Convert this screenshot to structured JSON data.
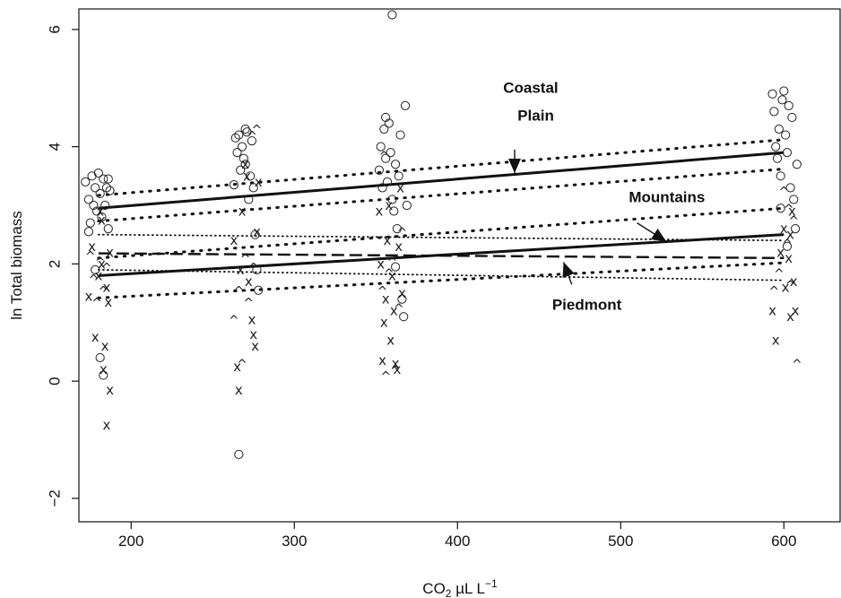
{
  "chart_data": {
    "type": "scatter",
    "xlabel": "CO2 µL L−1",
    "xlabel_main": "CO",
    "xlabel_sub": "2",
    "xlabel_unit": " µL L",
    "xlabel_sup": "−1",
    "ylabel": "ln Total biomass",
    "xlim": [
      168,
      635
    ],
    "ylim": [
      -2.4,
      6.35
    ],
    "x_ticks": [
      200,
      300,
      400,
      500,
      600
    ],
    "y_ticks": [
      -2,
      0,
      2,
      4,
      6
    ],
    "grid": false,
    "legend": "none",
    "series": [
      {
        "name": "Coastal Plain",
        "marker": "circle",
        "points": [
          [
            172,
            3.4
          ],
          [
            174,
            3.1
          ],
          [
            175,
            2.7
          ],
          [
            176,
            3.5
          ],
          [
            177,
            3.0
          ],
          [
            178,
            3.3
          ],
          [
            179,
            2.9
          ],
          [
            180,
            3.55
          ],
          [
            181,
            3.2
          ],
          [
            182,
            2.8
          ],
          [
            183,
            3.45
          ],
          [
            184,
            3.0
          ],
          [
            185,
            3.3
          ],
          [
            186,
            2.6
          ],
          [
            187,
            3.25
          ],
          [
            178,
            1.9
          ],
          [
            181,
            0.4
          ],
          [
            183,
            0.1
          ],
          [
            174,
            2.55
          ],
          [
            186,
            3.45
          ],
          [
            263,
            3.35
          ],
          [
            264,
            4.15
          ],
          [
            265,
            3.9
          ],
          [
            266,
            4.2
          ],
          [
            267,
            3.6
          ],
          [
            268,
            4.0
          ],
          [
            269,
            3.8
          ],
          [
            270,
            3.7
          ],
          [
            271,
            4.25
          ],
          [
            272,
            3.1
          ],
          [
            273,
            3.5
          ],
          [
            274,
            4.1
          ],
          [
            275,
            3.3
          ],
          [
            276,
            2.5
          ],
          [
            277,
            1.9
          ],
          [
            278,
            1.55
          ],
          [
            266,
            -1.25
          ],
          [
            270,
            4.3
          ],
          [
            352,
            3.6
          ],
          [
            353,
            4.0
          ],
          [
            354,
            3.3
          ],
          [
            355,
            4.3
          ],
          [
            356,
            3.8
          ],
          [
            357,
            3.4
          ],
          [
            358,
            4.4
          ],
          [
            359,
            3.9
          ],
          [
            360,
            3.1
          ],
          [
            361,
            2.9
          ],
          [
            362,
            3.7
          ],
          [
            363,
            2.6
          ],
          [
            364,
            3.5
          ],
          [
            365,
            4.2
          ],
          [
            366,
            1.4
          ],
          [
            367,
            1.1
          ],
          [
            368,
            4.7
          ],
          [
            369,
            3.0
          ],
          [
            360,
            6.25
          ],
          [
            356,
            4.5
          ],
          [
            362,
            1.95
          ],
          [
            593,
            4.9
          ],
          [
            594,
            4.6
          ],
          [
            595,
            4.0
          ],
          [
            596,
            3.8
          ],
          [
            597,
            4.3
          ],
          [
            598,
            3.5
          ],
          [
            599,
            4.8
          ],
          [
            600,
            4.95
          ],
          [
            601,
            4.2
          ],
          [
            602,
            3.9
          ],
          [
            603,
            4.7
          ],
          [
            604,
            3.3
          ],
          [
            605,
            4.5
          ],
          [
            606,
            3.1
          ],
          [
            607,
            2.6
          ],
          [
            608,
            3.7
          ],
          [
            602,
            2.3
          ],
          [
            598,
            2.95
          ]
        ]
      },
      {
        "name": "Mountains",
        "marker": "x",
        "points": [
          [
            174,
            1.45
          ],
          [
            176,
            2.3
          ],
          [
            178,
            0.75
          ],
          [
            180,
            1.8
          ],
          [
            181,
            2.9
          ],
          [
            182,
            2.75
          ],
          [
            183,
            0.2
          ],
          [
            184,
            0.6
          ],
          [
            185,
            1.6
          ],
          [
            186,
            1.35
          ],
          [
            187,
            -0.15
          ],
          [
            185,
            -0.75
          ],
          [
            182,
            2.0
          ],
          [
            187,
            2.2
          ],
          [
            263,
            2.4
          ],
          [
            265,
            0.25
          ],
          [
            266,
            -0.15
          ],
          [
            268,
            2.9
          ],
          [
            270,
            3.7
          ],
          [
            271,
            3.5
          ],
          [
            272,
            1.7
          ],
          [
            274,
            1.05
          ],
          [
            275,
            0.8
          ],
          [
            276,
            0.6
          ],
          [
            277,
            2.55
          ],
          [
            278,
            3.4
          ],
          [
            267,
            1.9
          ],
          [
            352,
            2.9
          ],
          [
            353,
            2.0
          ],
          [
            354,
            0.35
          ],
          [
            355,
            1.0
          ],
          [
            356,
            1.4
          ],
          [
            357,
            2.4
          ],
          [
            358,
            3.0
          ],
          [
            359,
            0.7
          ],
          [
            360,
            1.8
          ],
          [
            361,
            1.2
          ],
          [
            362,
            0.3
          ],
          [
            363,
            0.2
          ],
          [
            364,
            2.3
          ],
          [
            365,
            3.3
          ],
          [
            366,
            1.5
          ],
          [
            593,
            1.2
          ],
          [
            595,
            0.7
          ],
          [
            598,
            2.2
          ],
          [
            600,
            2.6
          ],
          [
            601,
            1.6
          ],
          [
            603,
            2.1
          ],
          [
            604,
            1.1
          ],
          [
            605,
            2.9
          ],
          [
            606,
            1.7
          ],
          [
            607,
            1.2
          ],
          [
            604,
            2.5
          ]
        ]
      },
      {
        "name": "Piedmont",
        "marker": "caret",
        "points": [
          [
            175,
            2.2
          ],
          [
            177,
            1.8
          ],
          [
            179,
            1.4
          ],
          [
            181,
            2.1
          ],
          [
            183,
            1.6
          ],
          [
            185,
            2.0
          ],
          [
            263,
            1.1
          ],
          [
            266,
            1.6
          ],
          [
            268,
            0.35
          ],
          [
            270,
            2.15
          ],
          [
            272,
            1.4
          ],
          [
            274,
            4.25
          ],
          [
            277,
            4.35
          ],
          [
            275,
            2.0
          ],
          [
            354,
            1.6
          ],
          [
            356,
            0.15
          ],
          [
            358,
            1.9
          ],
          [
            360,
            2.1
          ],
          [
            362,
            0.25
          ],
          [
            364,
            1.3
          ],
          [
            366,
            2.6
          ],
          [
            355,
            3.9
          ],
          [
            594,
            1.6
          ],
          [
            597,
            1.9
          ],
          [
            600,
            3.3
          ],
          [
            602,
            2.4
          ],
          [
            604,
            1.7
          ],
          [
            606,
            2.8
          ],
          [
            608,
            0.35
          ],
          [
            603,
            3.0
          ]
        ]
      }
    ],
    "fit_lines": [
      {
        "name": "Coastal Plain fit",
        "style": "solid",
        "x": [
          180,
          600
        ],
        "y": [
          2.95,
          3.9
        ]
      },
      {
        "name": "Coastal Plain band upper",
        "style": "dotted",
        "x": [
          180,
          600
        ],
        "y": [
          3.17,
          4.12
        ]
      },
      {
        "name": "Coastal Plain band lower",
        "style": "dotted",
        "x": [
          180,
          600
        ],
        "y": [
          2.73,
          3.62
        ]
      },
      {
        "name": "Piedmont fit",
        "style": "dashed",
        "x": [
          180,
          600
        ],
        "y": [
          2.18,
          2.1
        ]
      },
      {
        "name": "Piedmont band upper",
        "style": "dotted-fine",
        "x": [
          180,
          600
        ],
        "y": [
          2.5,
          2.4
        ]
      },
      {
        "name": "Piedmont band lower",
        "style": "dotted-fine",
        "x": [
          180,
          600
        ],
        "y": [
          1.9,
          1.72
        ]
      },
      {
        "name": "Mountains fit",
        "style": "solid",
        "x": [
          180,
          600
        ],
        "y": [
          1.8,
          2.5
        ]
      },
      {
        "name": "Mountains band upper",
        "style": "dotted",
        "x": [
          180,
          600
        ],
        "y": [
          2.1,
          2.95
        ]
      },
      {
        "name": "Mountains band lower",
        "style": "dotted",
        "x": [
          180,
          600
        ],
        "y": [
          1.42,
          2.02
        ]
      }
    ],
    "annotations": [
      {
        "name": "annotation-coastal",
        "lines": [
          "Coastal",
          "Plain"
        ],
        "x": 428,
        "y": 4.92,
        "arrow_from": [
          435,
          3.95
        ],
        "arrow_to": [
          435,
          3.55
        ]
      },
      {
        "name": "annotation-mountains",
        "lines": [
          "Mountains"
        ],
        "x": 505,
        "y": 3.05,
        "arrow_from": [
          510,
          2.7
        ],
        "arrow_to": [
          528,
          2.38
        ]
      },
      {
        "name": "annotation-piedmont",
        "lines": [
          "Piedmont"
        ],
        "x": 458,
        "y": 1.22,
        "arrow_from": [
          470,
          1.65
        ],
        "arrow_to": [
          465,
          2.03
        ]
      }
    ]
  }
}
